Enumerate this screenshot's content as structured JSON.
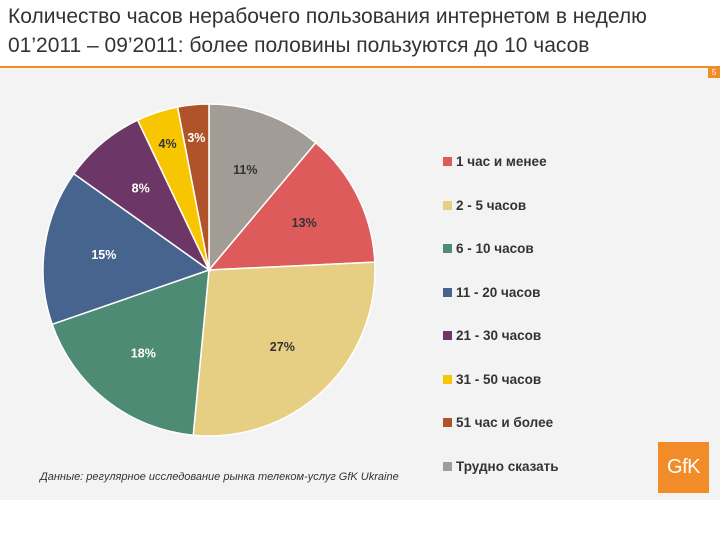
{
  "title": {
    "line1": "Количество часов нерабочего пользования интернетом в неделю",
    "line2": "01’2011 – 09’2011: более половины пользуются до 10 часов"
  },
  "page_number": "5",
  "source": "Данные: регулярное исследование рынка телеком-услуг GfK Ukraine",
  "logo_text": "GfK",
  "colors": {
    "accent": "#f28c28",
    "panel": "#f3f3f3"
  },
  "chart_data": {
    "type": "pie",
    "title": "",
    "slices": [
      {
        "label": "1 час и менее",
        "value": 13,
        "display": "13%",
        "color": "#dd5b5b"
      },
      {
        "label": "2 - 5 часов",
        "value": 27,
        "display": "27%",
        "color": "#e6cf83"
      },
      {
        "label": "6 - 10 часов",
        "value": 18,
        "display": "18%",
        "color": "#4e8b74"
      },
      {
        "label": "11 - 20 часов",
        "value": 15,
        "display": "15%",
        "color": "#46648e"
      },
      {
        "label": "21 - 30 часов",
        "value": 8,
        "display": "8%",
        "color": "#6c3766"
      },
      {
        "label": "31 - 50 часов",
        "value": 4,
        "display": "4%",
        "color": "#f8c600"
      },
      {
        "label": "51 час и более",
        "value": 3,
        "display": "3%",
        "color": "#b0532a"
      },
      {
        "label": "Трудно сказать",
        "value": 11,
        "display": "11%",
        "color": "#a29c97"
      }
    ],
    "start_slice": "Трудно сказать",
    "legend_position": "right"
  }
}
